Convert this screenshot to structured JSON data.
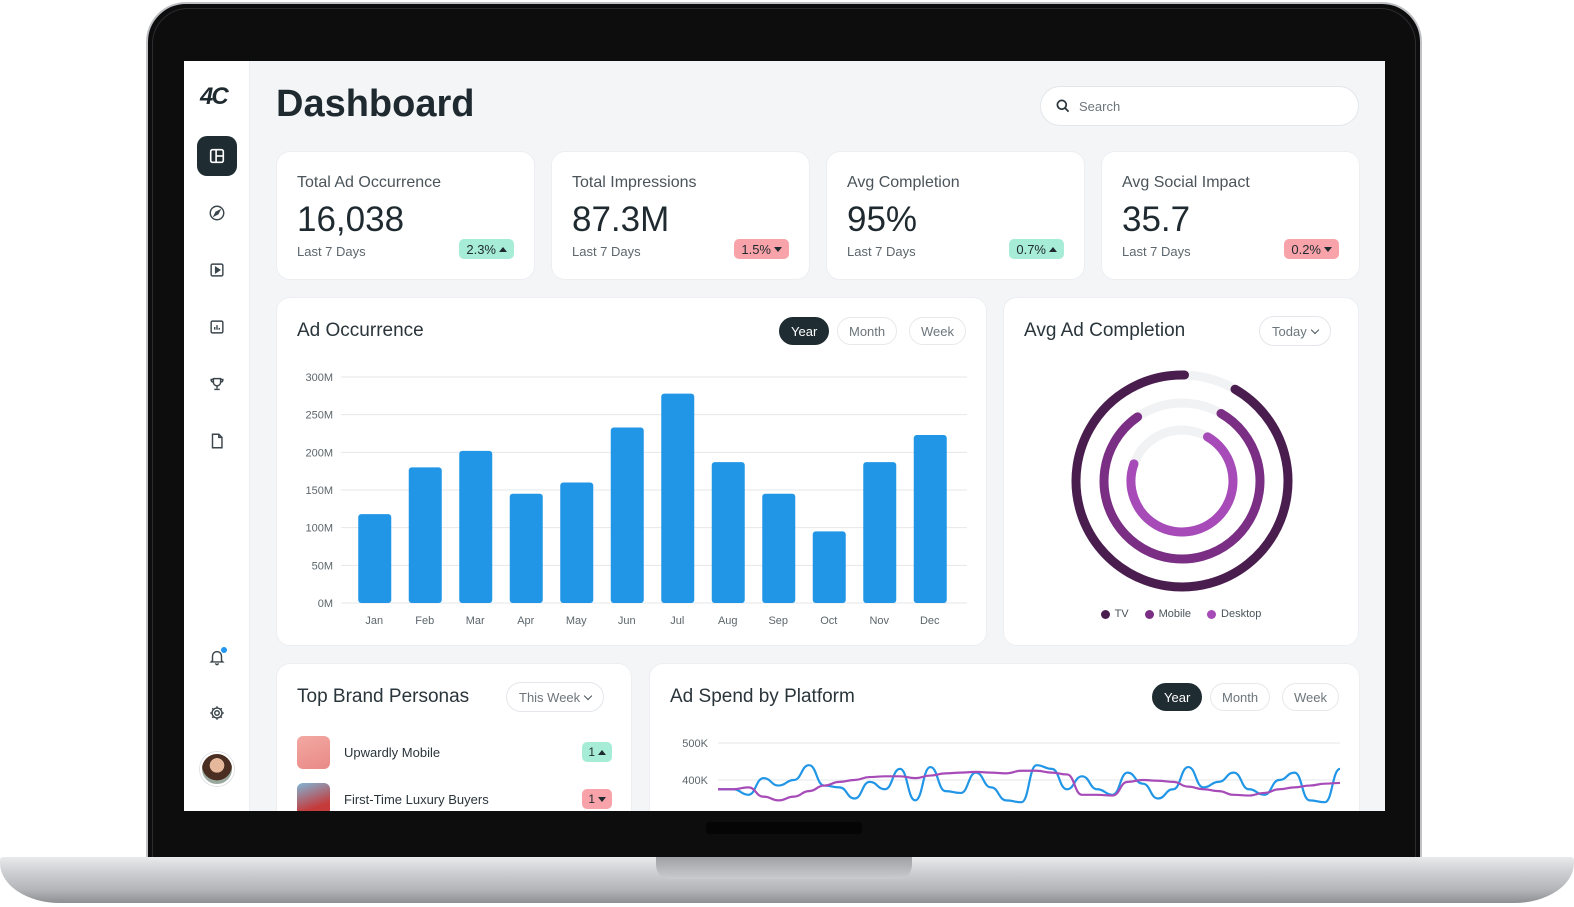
{
  "brand": {
    "logo_text": "4C"
  },
  "header": {
    "title": "Dashboard",
    "search_placeholder": "Search"
  },
  "sidebar": {
    "items": [
      {
        "name": "dashboard",
        "icon": "layout-icon"
      },
      {
        "name": "explore",
        "icon": "compass-icon"
      },
      {
        "name": "media",
        "icon": "play-square-icon"
      },
      {
        "name": "reports",
        "icon": "bar-chart-icon"
      },
      {
        "name": "awards",
        "icon": "trophy-icon"
      },
      {
        "name": "documents",
        "icon": "file-icon"
      }
    ],
    "bottom": [
      {
        "name": "notifications",
        "icon": "bell-icon"
      },
      {
        "name": "settings",
        "icon": "gear-icon"
      }
    ]
  },
  "stats": [
    {
      "label": "Total Ad Occurrence",
      "value": "16,038",
      "period": "Last 7 Days",
      "change": "2.3%",
      "direction": "up"
    },
    {
      "label": "Total Impressions",
      "value": "87.3M",
      "period": "Last 7 Days",
      "change": "1.5%",
      "direction": "down"
    },
    {
      "label": "Avg Completion",
      "value": "95%",
      "period": "Last 7 Days",
      "change": "0.7%",
      "direction": "up"
    },
    {
      "label": "Avg Social Impact",
      "value": "35.7",
      "period": "Last 7 Days",
      "change": "0.2%",
      "direction": "down"
    }
  ],
  "ad_occurrence": {
    "title": "Ad Occurrence",
    "tabs": [
      "Year",
      "Month",
      "Week"
    ],
    "active_tab": "Year"
  },
  "avg_completion": {
    "title": "Avg Ad Completion",
    "range": "Today",
    "legend": [
      "TV",
      "Mobile",
      "Desktop"
    ]
  },
  "personas": {
    "title": "Top Brand Personas",
    "range": "This Week",
    "items": [
      {
        "name": "Upwardly Mobile",
        "rank": "1",
        "direction": "up"
      },
      {
        "name": "First-Time Luxury Buyers",
        "rank": "1",
        "direction": "down"
      }
    ]
  },
  "ad_spend": {
    "title": "Ad Spend by Platform",
    "tabs": [
      "Year",
      "Month",
      "Week"
    ],
    "active_tab": "Year"
  },
  "colors": {
    "bar": "#2196e6",
    "tv": "#4a1d4f",
    "mobile": "#7a2f84",
    "desktop": "#a64bb8",
    "up": "#a7ecd6",
    "down": "#f7a3a9",
    "line_blue": "#2196e6",
    "line_purple": "#a64bb8"
  },
  "chart_data": [
    {
      "type": "bar",
      "title": "Ad Occurrence",
      "categories": [
        "Jan",
        "Feb",
        "Mar",
        "Apr",
        "May",
        "Jun",
        "Jul",
        "Aug",
        "Sep",
        "Oct",
        "Nov",
        "Dec"
      ],
      "values": [
        118,
        180,
        202,
        145,
        160,
        233,
        278,
        187,
        145,
        95,
        187,
        223
      ],
      "unit": "M",
      "yticks": [
        "300M",
        "250M",
        "200M",
        "150M",
        "100M",
        "50M",
        "0M"
      ],
      "ylim": [
        0,
        300
      ]
    },
    {
      "type": "pie",
      "title": "Avg Ad Completion",
      "series": [
        {
          "name": "TV",
          "value": 92
        },
        {
          "name": "Mobile",
          "value": 82
        },
        {
          "name": "Desktop",
          "value": 72
        }
      ]
    },
    {
      "type": "line",
      "title": "Ad Spend by Platform",
      "yticks": [
        "500K",
        "400K"
      ],
      "ylim": [
        300,
        500
      ],
      "series": [
        {
          "name": "blue",
          "values": [
            375,
            375,
            360,
            405,
            385,
            400,
            440,
            385,
            380,
            350,
            395,
            375,
            430,
            345,
            435,
            370,
            365,
            420,
            380,
            345,
            340,
            440,
            430,
            375,
            410,
            375,
            360,
            420,
            390,
            350,
            375,
            435,
            380,
            395,
            420,
            375,
            360,
            400,
            420,
            345,
            340,
            430
          ]
        },
        {
          "name": "purple",
          "values": [
            375,
            375,
            380,
            355,
            345,
            355,
            370,
            385,
            395,
            400,
            408,
            410,
            410,
            405,
            412,
            418,
            420,
            422,
            420,
            418,
            425,
            425,
            420,
            415,
            360,
            360,
            358,
            395,
            400,
            398,
            395,
            382,
            375,
            370,
            360,
            358,
            365,
            375,
            380,
            385,
            390,
            392
          ]
        }
      ]
    }
  ]
}
